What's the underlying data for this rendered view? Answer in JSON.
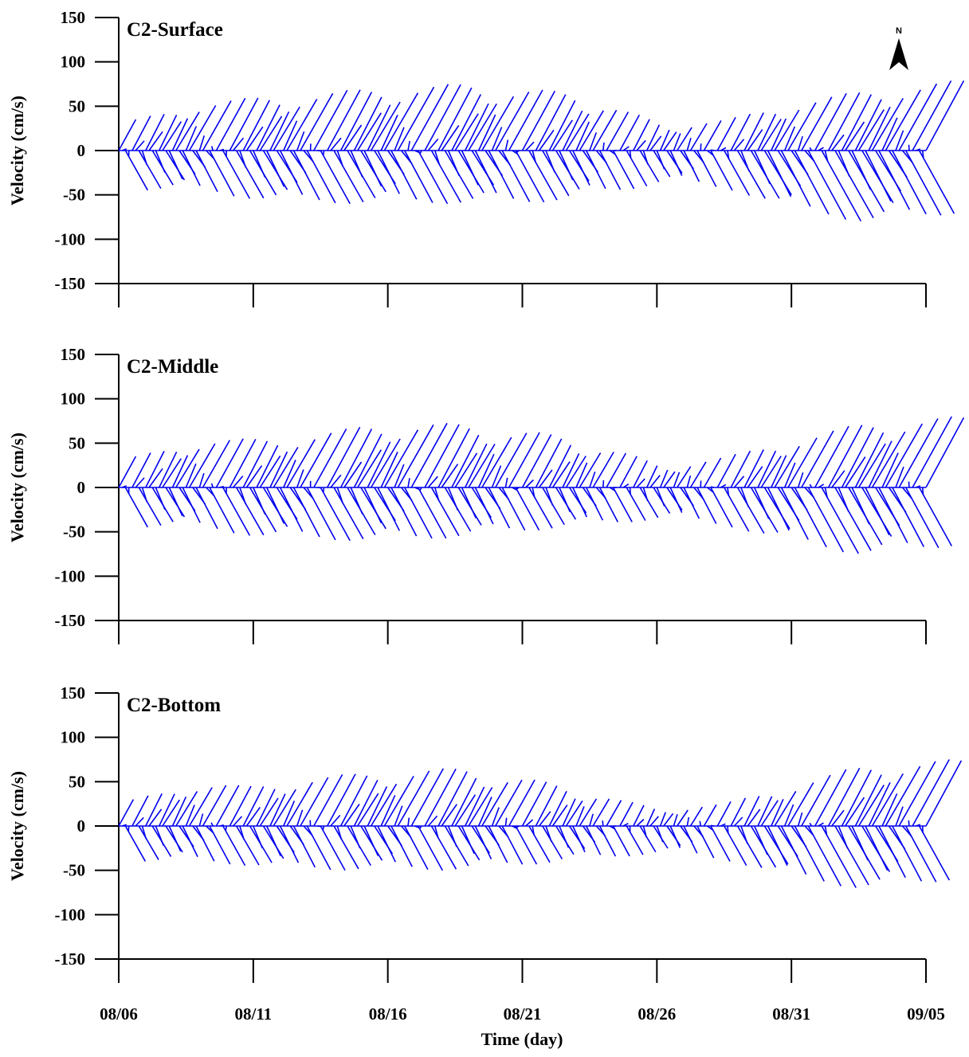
{
  "chart_data": [
    {
      "type": "stick-vector",
      "title": "C2-Surface",
      "ylabel": "Velocity (cm/s)",
      "ylim": [
        -150,
        150
      ],
      "yticks": [
        150,
        100,
        50,
        0,
        -50,
        -100,
        -150
      ],
      "x_range": [
        "08/06",
        "09/05"
      ],
      "sample_interval_hours": 3,
      "envelope": {
        "day": [
          0,
          2,
          4,
          6,
          8,
          10,
          12,
          14,
          16,
          18,
          20,
          22,
          24,
          26,
          28,
          30,
          32
        ],
        "north_amplitude": [
          35,
          55,
          60,
          65,
          70,
          75,
          75,
          70,
          65,
          45,
          30,
          35,
          55,
          65,
          75,
          80,
          70
        ],
        "south_amplitude": [
          45,
          45,
          55,
          60,
          60,
          60,
          60,
          60,
          55,
          45,
          35,
          45,
          70,
          80,
          80,
          70,
          60
        ]
      }
    },
    {
      "type": "stick-vector",
      "title": "C2-Middle",
      "ylabel": "Velocity (cm/s)",
      "ylim": [
        -150,
        150
      ],
      "yticks": [
        150,
        100,
        50,
        0,
        -50,
        -100,
        -150
      ],
      "x_range": [
        "08/06",
        "09/05"
      ],
      "sample_interval_hours": 3,
      "envelope": {
        "day": [
          0,
          2,
          4,
          6,
          8,
          10,
          12,
          14,
          16,
          18,
          20,
          22,
          24,
          26,
          28,
          30,
          32
        ],
        "north_amplitude": [
          35,
          55,
          55,
          60,
          70,
          75,
          70,
          65,
          55,
          40,
          25,
          35,
          55,
          70,
          80,
          80,
          70
        ],
        "south_amplitude": [
          45,
          45,
          55,
          60,
          60,
          60,
          55,
          50,
          45,
          40,
          35,
          45,
          65,
          75,
          75,
          65,
          55
        ]
      }
    },
    {
      "type": "stick-vector",
      "title": "C2-Bottom",
      "ylabel": "Velocity (cm/s)",
      "ylim": [
        -150,
        150
      ],
      "yticks": [
        150,
        100,
        50,
        0,
        -50,
        -100,
        -150
      ],
      "x_range": [
        "08/06",
        "09/05"
      ],
      "sample_interval_hours": 3,
      "envelope": {
        "day": [
          0,
          2,
          4,
          6,
          8,
          10,
          12,
          14,
          16,
          18,
          20,
          22,
          24,
          26,
          28,
          30,
          32
        ],
        "north_amplitude": [
          30,
          50,
          45,
          55,
          60,
          65,
          65,
          55,
          45,
          30,
          20,
          25,
          45,
          65,
          75,
          75,
          65
        ],
        "south_amplitude": [
          40,
          40,
          45,
          50,
          50,
          50,
          50,
          45,
          40,
          35,
          30,
          40,
          60,
          70,
          70,
          60,
          50
        ]
      }
    }
  ],
  "x_axis": {
    "title": "Time (day)",
    "tick_labels": [
      "08/06",
      "08/11",
      "08/16",
      "08/21",
      "08/26",
      "08/31",
      "09/05"
    ]
  },
  "north_arrow": {
    "label": "N"
  },
  "colors": {
    "sticks": "#0000ee",
    "axes": "#000000"
  }
}
